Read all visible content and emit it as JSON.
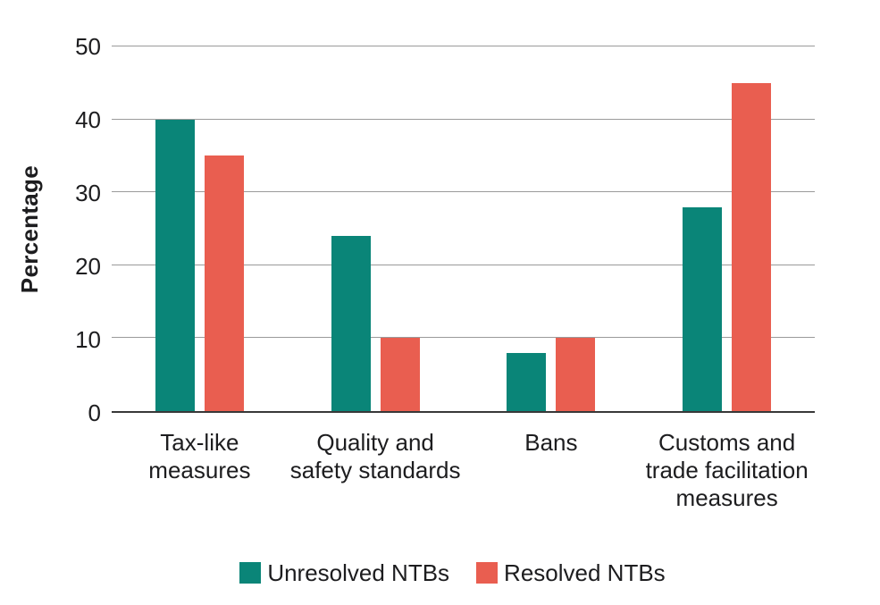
{
  "chart_data": {
    "type": "bar",
    "title": "",
    "xlabel": "",
    "ylabel": "Percentage",
    "ylim": [
      0,
      50
    ],
    "yticks": [
      0,
      10,
      20,
      30,
      40,
      50
    ],
    "grid": true,
    "legend_position": "bottom",
    "categories": [
      "Tax-like\nmeasures",
      "Quality and\nsafety standards",
      "Bans",
      "Customs and\ntrade facilitation\nmeasures"
    ],
    "series": [
      {
        "name": "Unresolved NTBs",
        "color": "#0a8578",
        "values": [
          40,
          24,
          8,
          28
        ]
      },
      {
        "name": "Resolved NTBs",
        "color": "#e95e50",
        "values": [
          35,
          10,
          10,
          45
        ]
      }
    ],
    "style": {
      "grid_color": "#9a9a9a",
      "axis_color": "#383838",
      "text_color": "#1d1d1f"
    }
  }
}
